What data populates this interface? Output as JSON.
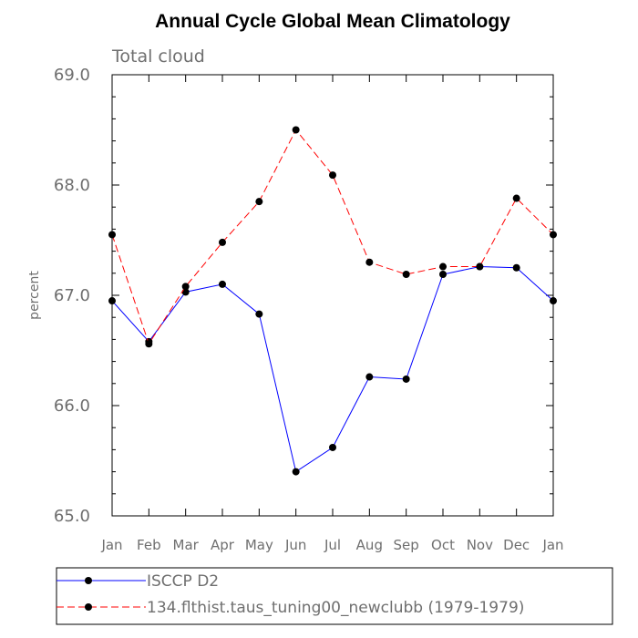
{
  "chart_data": {
    "type": "line",
    "title": "Annual Cycle Global Mean Climatology",
    "subtitle": "Total cloud",
    "ylabel": "percent",
    "xlabel": "",
    "ylim": [
      65.0,
      69.0
    ],
    "yticks": [
      "65.0",
      "66.0",
      "67.0",
      "68.0",
      "69.0"
    ],
    "yticks_values": [
      65.0,
      66.0,
      67.0,
      68.0,
      69.0
    ],
    "categories": [
      "Jan",
      "Feb",
      "Mar",
      "Apr",
      "May",
      "Jun",
      "Jul",
      "Aug",
      "Sep",
      "Oct",
      "Nov",
      "Dec",
      "Jan"
    ],
    "grid": false,
    "legend_position": "bottom",
    "series": [
      {
        "name": "ISCCP D2",
        "color": "#0000ff",
        "dash": "solid",
        "values": [
          66.95,
          66.58,
          67.03,
          67.1,
          66.83,
          65.4,
          65.62,
          66.26,
          66.24,
          67.19,
          67.26,
          67.25,
          66.95
        ]
      },
      {
        "name": "134.flthist.taus_tuning00_newclubb (1979-1979)",
        "color": "#ff0000",
        "dash": "dashed",
        "values": [
          67.55,
          66.56,
          67.08,
          67.48,
          67.85,
          68.5,
          68.09,
          67.3,
          67.19,
          67.26,
          67.26,
          67.88,
          67.55
        ]
      }
    ]
  }
}
